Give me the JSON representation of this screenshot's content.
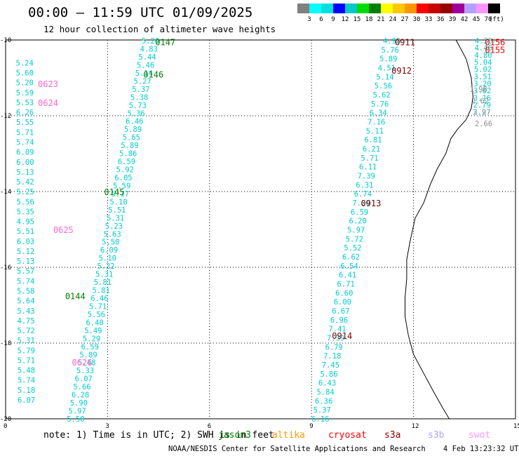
{
  "title": "00:00 — 11:59 UTC 01/09/2025",
  "subtitle": "12 hour collection of altimeter wave heights",
  "colorbar": {
    "colors": [
      "#808080",
      "#00ffff",
      "#00e0e0",
      "#0000ff",
      "#00c8c8",
      "#00dc00",
      "#008000",
      "#ffff00",
      "#ffc800",
      "#ff9600",
      "#ff0000",
      "#c80000",
      "#960000",
      "#a000a0",
      "#b4a0ff",
      "#ff96ff",
      "#000000"
    ],
    "labels": [
      "3",
      "6",
      "9",
      "12",
      "15",
      "18",
      "21",
      "24",
      "27",
      "30",
      "33",
      "36",
      "39",
      "42",
      "45",
      "70"
    ],
    "unit": "(ft)"
  },
  "axes": {
    "x_ticks": [
      "0",
      "3",
      "6",
      "9",
      "12",
      "15"
    ],
    "y_ticks": [
      "-10",
      "-12",
      "-14",
      "-16",
      "-18",
      "-20"
    ],
    "x_range": [
      0,
      15
    ],
    "y_range": [
      -10,
      -20
    ]
  },
  "passes": [
    {
      "color": "#00cccc",
      "heights": [
        "5.26",
        "4.83",
        "5.44",
        "5.46",
        "5.14",
        "5.27",
        "5.37",
        "5.38",
        "5.73",
        "5.36",
        "6.46",
        "5.89",
        "5.65",
        "5.89",
        "5.86",
        "6.59",
        "5.92",
        "6.05",
        "5.59",
        "5.17",
        "5.10",
        "5.51",
        "5.31",
        "5.23",
        "5.63",
        "5.50",
        "6.09",
        "5.10",
        "5.22",
        "5.31",
        "5.81",
        "5.81",
        "6.46",
        "5.71",
        "5.56",
        "6.40",
        "5.49",
        "5.29",
        "6.59",
        "5.89",
        "5.48",
        "5.33",
        "6.07",
        "5.66",
        "6.28",
        "5.90",
        "5.97",
        "5.50"
      ],
      "start": [
        4.0,
        -10.02
      ],
      "end": [
        1.8,
        -20.0
      ]
    },
    {
      "color": "#00cccc",
      "heights": [
        "5.24",
        "5.60",
        "5.20",
        "5.59",
        "5.53",
        "6.26",
        "5.55",
        "5.71",
        "5.74",
        "6.09",
        "6.00",
        "5.13",
        "5.42",
        "5.25",
        "5.56",
        "5.35",
        "4.95",
        "5.51",
        "6.03",
        "5.12",
        "5.13",
        "5.57",
        "5.74",
        "5.58",
        "5.64",
        "5.43",
        "4.75",
        "5.72",
        "5.31",
        "5.79",
        "5.71",
        "5.48",
        "5.74",
        "5.18",
        "6.07"
      ],
      "start": [
        0.3,
        -10.6
      ],
      "end": [
        0.35,
        -19.5
      ]
    },
    {
      "color": "#00cccc",
      "heights": [
        "4.93",
        "5.76",
        "5.89",
        "4.51",
        "5.14",
        "5.56",
        "5.62",
        "5.76",
        "6.34",
        "7.16",
        "5.11",
        "6.81",
        "6.21",
        "5.71",
        "6.11",
        "7.39",
        "6.31",
        "6.74",
        "7.00",
        "6.59",
        "6.20",
        "5.97",
        "5.72",
        "5.52",
        "6.62",
        "6.54",
        "6.41",
        "6.71",
        "6.60",
        "6.00",
        "6.67",
        "6.96",
        "7.41",
        "7.39",
        "6.79",
        "7.18",
        "7.45",
        "5.86",
        "6.43",
        "5.84",
        "6.36",
        "5.37",
        "6.16"
      ],
      "start": [
        11.1,
        -10.02
      ],
      "end": [
        9.0,
        -20.0
      ]
    },
    {
      "color": "#00cccc",
      "heights": [
        "4.26",
        "4.46",
        "4.80",
        "5.04",
        "5.02",
        "3.51",
        "3.20",
        "3.02",
        "3.16",
        "2.79",
        "3.27"
      ],
      "start": [
        13.8,
        -10.02
      ],
      "end": [
        13.75,
        -11.9
      ]
    },
    {
      "color": "#909090",
      "heights": [
        "1.98",
        "2.62",
        "2.97",
        "2.66"
      ],
      "start": [
        13.65,
        -11.3
      ],
      "end": [
        13.8,
        -12.2
      ]
    }
  ],
  "times": [
    {
      "t": "0147",
      "color": "#008000",
      "x": 4.4,
      "y": -10.05
    },
    {
      "t": "0146",
      "color": "#008000",
      "x": 4.05,
      "y": -10.9
    },
    {
      "t": "0145",
      "color": "#008000",
      "x": 2.9,
      "y": -14.0
    },
    {
      "t": "0144",
      "color": "#008000",
      "x": 1.75,
      "y": -16.75
    },
    {
      "t": "0623",
      "color": "#ff66cc",
      "x": 0.95,
      "y": -11.15
    },
    {
      "t": "0624",
      "color": "#ff66cc",
      "x": 0.95,
      "y": -11.65
    },
    {
      "t": "0625",
      "color": "#ff66cc",
      "x": 1.4,
      "y": -15.0
    },
    {
      "t": "0626",
      "color": "#ff66cc",
      "x": 1.95,
      "y": -18.5
    },
    {
      "t": "0911",
      "color": "#800000",
      "x": 11.45,
      "y": -10.05
    },
    {
      "t": "0912",
      "color": "#800000",
      "x": 11.35,
      "y": -10.8
    },
    {
      "t": "0913",
      "color": "#800000",
      "x": 10.45,
      "y": -14.3
    },
    {
      "t": "0914",
      "color": "#800000",
      "x": 9.6,
      "y": -17.8
    },
    {
      "t": "0156",
      "color": "#ff0000",
      "x": 14.1,
      "y": -10.05
    },
    {
      "t": "0155",
      "color": "#ff0000",
      "x": 14.1,
      "y": -10.25
    }
  ],
  "note": "note: 1) Time is in UTC; 2) SWH is in feet",
  "satellites": [
    {
      "name": "jason3",
      "color": "#008000"
    },
    {
      "name": "altika",
      "color": "#ff9900"
    },
    {
      "name": "cryosat",
      "color": "#ff0000"
    },
    {
      "name": "s3a",
      "color": "#800000"
    },
    {
      "name": "s3b",
      "color": "#b4a0ff"
    },
    {
      "name": "swot",
      "color": "#ff96ff"
    }
  ],
  "footer": "NOAA/NESDIS Center for Satellite Applications and Research    4 Feb 13:23:32 UTC 2025"
}
